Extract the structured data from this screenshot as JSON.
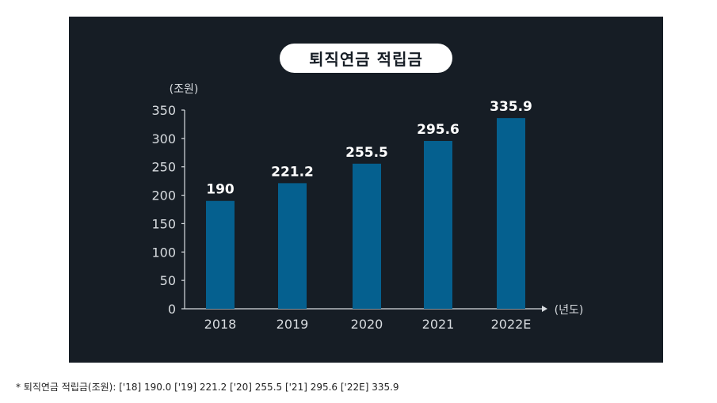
{
  "chart_data": {
    "type": "bar",
    "title": "퇴직연금 적립금",
    "ylabel": "(조원)",
    "xlabel": "(년도)",
    "categories": [
      "2018",
      "2019",
      "2020",
      "2021",
      "2022E"
    ],
    "values": [
      190,
      221.2,
      255.5,
      295.6,
      335.9
    ],
    "data_labels": [
      "190",
      "221.2",
      "255.5",
      "295.6",
      "335.9"
    ],
    "ylim": [
      0,
      350
    ],
    "yticks": [
      "0",
      "50",
      "100",
      "150",
      "200",
      "250",
      "300",
      "350"
    ],
    "grid": false,
    "bar_color": "#05608f",
    "background_color": "#161d25"
  },
  "caption": "* 퇴직연금 적립금(조원): ['18] 190.0 ['19] 221.2 ['20] 255.5 ['21] 295.6 ['22E] 335.9"
}
